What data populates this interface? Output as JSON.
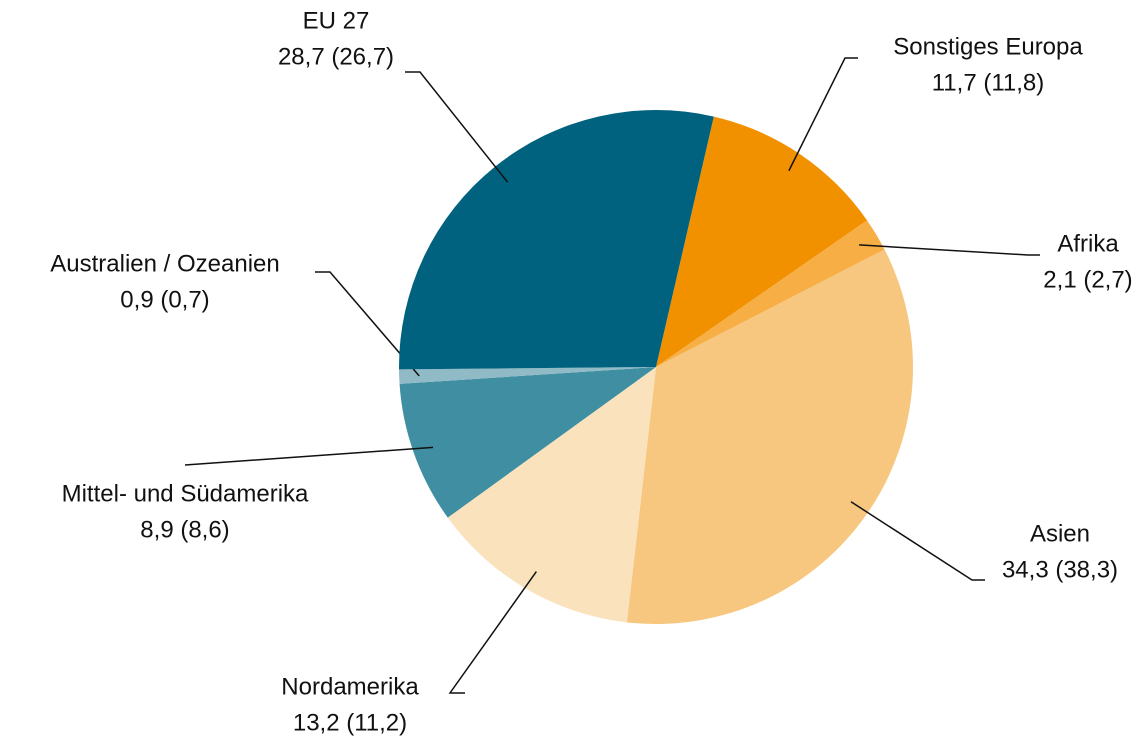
{
  "chart_data": {
    "type": "pie",
    "categories": [
      "Sonstiges Europa",
      "Afrika",
      "Asien",
      "Nordamerika",
      "Mittel- und Südamerika",
      "Australien / Ozeanien",
      "EU 27"
    ],
    "values": [
      11.7,
      2.1,
      34.3,
      13.2,
      8.9,
      0.9,
      28.7
    ],
    "value_labels": [
      "11,7 (11,8)",
      "2,1 (2,7)",
      "34,3 (38,3)",
      "13,2 (11,2)",
      "8,9 (8,6)",
      "0,9 (0,7)",
      "28,7 (26,7)"
    ],
    "colors": [
      "#f29100",
      "#f6ae45",
      "#f7c77f",
      "#fae2bd",
      "#3f8ea2",
      "#8fbac6",
      "#00627f"
    ]
  }
}
